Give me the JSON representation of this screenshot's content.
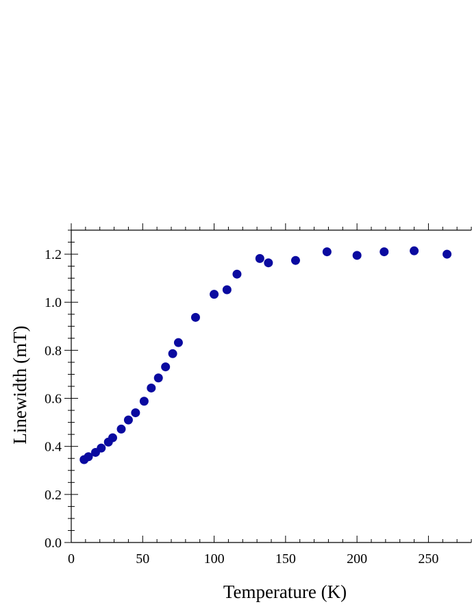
{
  "chart_data": {
    "type": "scatter",
    "xlabel": "Temperature (K)",
    "ylabel": "Linewidth (mT)",
    "xlim": [
      0,
      280
    ],
    "ylim": [
      0,
      1.3
    ],
    "x_ticks": [
      0,
      50,
      100,
      150,
      200,
      250
    ],
    "x_tick_labels": [
      "0",
      "50",
      "100",
      "150",
      "200",
      "250"
    ],
    "y_ticks": [
      0,
      0.2,
      0.4,
      0.6,
      0.8,
      1.0,
      1.2
    ],
    "y_tick_labels": [
      "0.0",
      "0.2",
      "0.4",
      "0.6",
      "0.8",
      "1.0",
      "1.2"
    ],
    "grid": false,
    "marker_color": "#0a0aa0",
    "series": [
      {
        "points": [
          [
            9,
            0.345
          ],
          [
            12,
            0.357
          ],
          [
            17,
            0.375
          ],
          [
            21,
            0.393
          ],
          [
            26,
            0.418
          ],
          [
            29,
            0.436
          ],
          [
            35,
            0.472
          ],
          [
            40,
            0.51
          ],
          [
            45,
            0.54
          ],
          [
            51,
            0.588
          ],
          [
            56,
            0.643
          ],
          [
            61,
            0.685
          ],
          [
            66,
            0.731
          ],
          [
            71,
            0.786
          ],
          [
            75,
            0.832
          ],
          [
            87,
            0.937
          ],
          [
            100,
            1.033
          ],
          [
            109,
            1.052
          ],
          [
            116,
            1.117
          ],
          [
            132,
            1.182
          ],
          [
            138,
            1.164
          ],
          [
            157,
            1.174
          ],
          [
            179,
            1.21
          ],
          [
            200,
            1.195
          ],
          [
            219,
            1.21
          ],
          [
            240,
            1.214
          ],
          [
            263,
            1.2
          ]
        ]
      }
    ]
  }
}
